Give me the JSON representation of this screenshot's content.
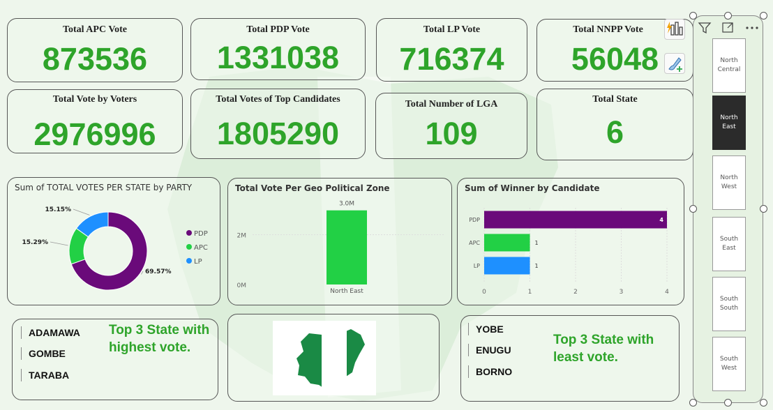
{
  "kpis": [
    {
      "title": "Total APC Vote",
      "value": "873536"
    },
    {
      "title": "Total PDP Vote",
      "value": "1331038"
    },
    {
      "title": "Total LP Vote",
      "value": "716374"
    },
    {
      "title": "Total NNPP Vote",
      "value": "56048"
    },
    {
      "title": "Total Vote by Voters",
      "value": "2976996"
    },
    {
      "title": "Total Votes of Top Candidates",
      "value": "1805290"
    },
    {
      "title": "Total Number of LGA",
      "value": "109"
    },
    {
      "title": "Total State",
      "value": "6"
    }
  ],
  "chart_data": [
    {
      "type": "pie",
      "title": "Sum of TOTAL VOTES PER STATE by PARTY",
      "categories": [
        "PDP",
        "APC",
        "LP"
      ],
      "values": [
        69.57,
        15.29,
        15.15
      ],
      "labels": [
        "69.57%",
        "15.29%",
        "15.15%"
      ],
      "colors": [
        "#6a0a7a",
        "#22d045",
        "#1e90ff"
      ],
      "legend": "right"
    },
    {
      "type": "bar",
      "title": "Total Vote Per Geo Political Zone",
      "categories": [
        "North East"
      ],
      "values": [
        2976996
      ],
      "data_label": "3.0M",
      "y_ticks": [
        "0M",
        "2M"
      ],
      "color": "#22d045",
      "ylim": [
        0,
        3500000
      ]
    },
    {
      "type": "bar",
      "orientation": "horizontal",
      "title": "Sum of Winner by Candidate",
      "categories": [
        "PDP",
        "APC",
        "LP"
      ],
      "values": [
        4,
        1,
        1
      ],
      "colors": [
        "#6a0a7a",
        "#22d045",
        "#1e90ff"
      ],
      "x_ticks": [
        "0",
        "1",
        "2",
        "3",
        "4"
      ],
      "xlim": [
        0,
        4
      ]
    }
  ],
  "top3_highest": {
    "states": [
      "ADAMAWA",
      "GOMBE",
      "TARABA"
    ],
    "text": "Top 3 State with highest vote."
  },
  "top3_least": {
    "states": [
      "YOBE",
      "ENUGU",
      "BORNO"
    ],
    "text": "Top 3 State with least vote."
  },
  "slicer": {
    "items": [
      "North Central",
      "North East",
      "North West",
      "South East",
      "South South",
      "South West"
    ],
    "selected": "North East"
  },
  "colors": {
    "kpi_value": "#2ea42a",
    "pdp": "#6a0a7a",
    "apc": "#22d045",
    "lp": "#1e90ff",
    "selected_slicer": "#2b2b2b"
  },
  "icons": {
    "quick_insights": "bar-chart-lightning-icon",
    "format": "paintbrush-plus-icon",
    "filter": "filter-icon",
    "focus": "focus-mode-icon",
    "more": "more-options-icon"
  }
}
